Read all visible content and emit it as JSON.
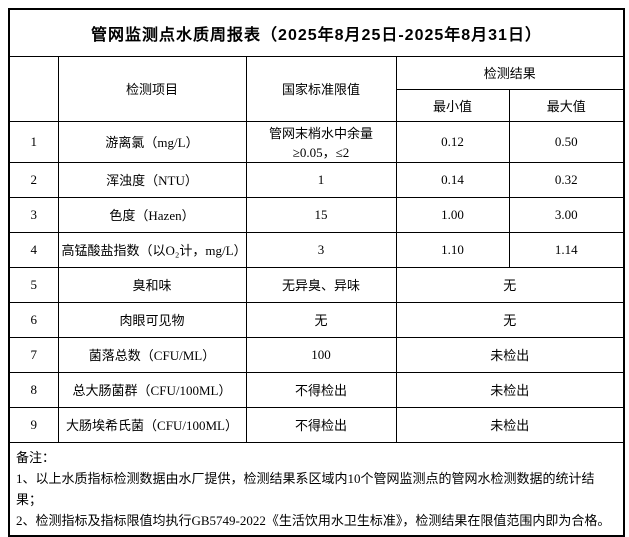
{
  "title": "管网监测点水质周报表（2025年8月25日-2025年8月31日）",
  "table": {
    "headers": {
      "index": "",
      "item": "检测项目",
      "limit": "国家标准限值",
      "result_group": "检测结果",
      "min": "最小值",
      "max": "最大值"
    },
    "rows": [
      {
        "no": "1",
        "item": "游离氯（mg/L）",
        "limit": "管网末梢水中余量≥0.05，≤2",
        "min": "0.12",
        "max": "0.50"
      },
      {
        "no": "2",
        "item": "浑浊度（NTU）",
        "limit": "1",
        "min": "0.14",
        "max": "0.32"
      },
      {
        "no": "3",
        "item": "色度（Hazen）",
        "limit": "15",
        "min": "1.00",
        "max": "3.00"
      },
      {
        "no": "4",
        "item": "高锰酸盐指数（以O₂计，mg/L）",
        "limit": "3",
        "min": "1.10",
        "max": "1.14"
      },
      {
        "no": "5",
        "item": "臭和味",
        "limit": "无异臭、异味",
        "merged": "无"
      },
      {
        "no": "6",
        "item": "肉眼可见物",
        "limit": "无",
        "merged": "无"
      },
      {
        "no": "7",
        "item": "菌落总数（CFU/ML）",
        "limit": "100",
        "merged": "未检出"
      },
      {
        "no": "8",
        "item": "总大肠菌群（CFU/100ML）",
        "limit": "不得检出",
        "merged": "未检出"
      },
      {
        "no": "9",
        "item": "大肠埃希氏菌（CFU/100ML）",
        "limit": "不得检出",
        "merged": "未检出"
      }
    ],
    "notes": [
      "备注：",
      "1、以上水质指标检测数据由水厂提供，检测结果系区域内10个管网监测点的管网水检测数据的统计结果；",
      "2、检测指标及指标限值均执行GB5749-2022《生活饮用水卫生标准》，检测结果在限值范围内即为合格。"
    ]
  },
  "colors": {
    "border": "#000000",
    "text": "#000000",
    "background": "#ffffff"
  }
}
